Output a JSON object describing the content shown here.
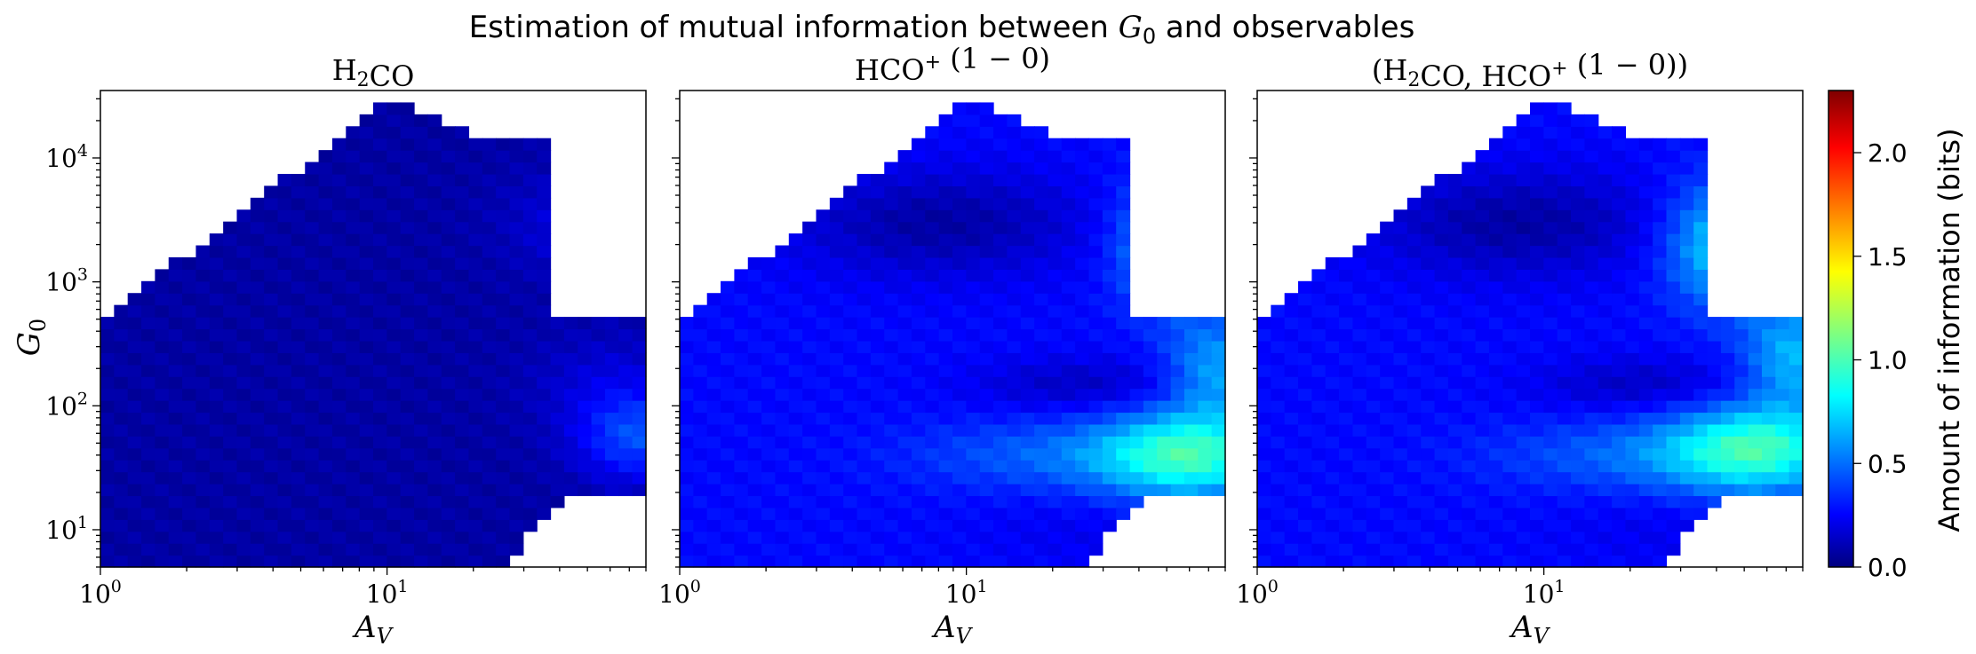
{
  "figure": {
    "suptitle_prefix": "Estimation of mutual information between ",
    "suptitle_symbol": "G",
    "suptitle_sub": "0",
    "suptitle_suffix": " and observables"
  },
  "colorbar": {
    "label": "Amount of information (bits)",
    "range": [
      0.0,
      2.3
    ],
    "ticks": [
      "0.0",
      "0.5",
      "1.0",
      "1.5",
      "2.0"
    ],
    "colormap": "jet",
    "colors": [
      "#00007f",
      "#0000ff",
      "#00ffff",
      "#ffff00",
      "#ff0000",
      "#7f0000"
    ]
  },
  "axes": {
    "xlabel_symbol": "A",
    "xlabel_sub": "V",
    "ylabel_symbol": "G",
    "ylabel_sub": "0",
    "x_ticks": [
      {
        "value": 1,
        "base": "10",
        "exp": "0"
      },
      {
        "value": 10,
        "base": "10",
        "exp": "1"
      }
    ],
    "y_ticks": [
      {
        "value": 10,
        "base": "10",
        "exp": "1"
      },
      {
        "value": 100,
        "base": "10",
        "exp": "2"
      },
      {
        "value": 1000,
        "base": "10",
        "exp": "3"
      },
      {
        "value": 10000,
        "base": "10",
        "exp": "4"
      }
    ]
  },
  "chart_data": [
    {
      "type": "heatmap",
      "title_parts": [
        {
          "t": "H"
        },
        {
          "t": "2",
          "sub": true
        },
        {
          "t": "CO"
        }
      ],
      "x_scale": "log",
      "y_scale": "log",
      "xlim": [
        1,
        80
      ],
      "ylim": [
        5,
        35000
      ],
      "grid": false,
      "description_of_values": "mutual information (bits) between G0 and observable, per (A_V, G0) bin",
      "base_value": 0.08,
      "blobs": [
        {
          "x": 75,
          "y": 55,
          "sx": 0.15,
          "sy": 0.25,
          "value": 0.35
        },
        {
          "x": 50,
          "y": 3000,
          "sx": 0.2,
          "sy": 0.3,
          "value": 0.15
        },
        {
          "x": 60,
          "y": 150,
          "sx": 0.2,
          "sy": 0.3,
          "value": 0.12
        }
      ]
    },
    {
      "type": "heatmap",
      "title_parts": [
        {
          "t": "HCO"
        },
        {
          "t": "+",
          "sup": true
        },
        {
          "t": " (1 − 0)"
        }
      ],
      "x_scale": "log",
      "y_scale": "log",
      "xlim": [
        1,
        80
      ],
      "ylim": [
        5,
        35000
      ],
      "grid": false,
      "description_of_values": "mutual information (bits) between G0 and observable, per (A_V, G0) bin",
      "base_value": 0.3,
      "blobs": [
        {
          "x": 60,
          "y": 40,
          "sx": 0.22,
          "sy": 0.25,
          "value": 0.65
        },
        {
          "x": 50,
          "y": 2000,
          "sx": 0.12,
          "sy": 0.35,
          "value": 0.45
        },
        {
          "x": 75,
          "y": 200,
          "sx": 0.12,
          "sy": 0.3,
          "value": 0.35
        },
        {
          "x": 20,
          "y": 40,
          "sx": 0.35,
          "sy": 0.2,
          "value": 0.2
        },
        {
          "x": 8,
          "y": 3000,
          "sx": 0.35,
          "sy": 0.3,
          "value": -0.22
        },
        {
          "x": 25,
          "y": 150,
          "sx": 0.25,
          "sy": 0.15,
          "value": -0.15
        },
        {
          "x": 30,
          "y": 10,
          "sx": 0.3,
          "sy": 0.2,
          "value": -0.05
        }
      ]
    },
    {
      "type": "heatmap",
      "title_parts": [
        {
          "t": "(H"
        },
        {
          "t": "2",
          "sub": true
        },
        {
          "t": "CO, HCO"
        },
        {
          "t": "+",
          "sup": true
        },
        {
          "t": " (1 − 0))"
        }
      ],
      "x_scale": "log",
      "y_scale": "log",
      "xlim": [
        1,
        80
      ],
      "ylim": [
        5,
        35000
      ],
      "grid": false,
      "description_of_values": "mutual information (bits) between G0 and observable, per (A_V, G0) bin",
      "base_value": 0.3,
      "blobs": [
        {
          "x": 55,
          "y": 45,
          "sx": 0.22,
          "sy": 0.25,
          "value": 0.65
        },
        {
          "x": 45,
          "y": 2000,
          "sx": 0.15,
          "sy": 0.35,
          "value": 0.55
        },
        {
          "x": 75,
          "y": 250,
          "sx": 0.12,
          "sy": 0.3,
          "value": 0.4
        },
        {
          "x": 20,
          "y": 40,
          "sx": 0.35,
          "sy": 0.2,
          "value": 0.2
        },
        {
          "x": 8,
          "y": 3000,
          "sx": 0.35,
          "sy": 0.3,
          "value": -0.22
        },
        {
          "x": 22,
          "y": 150,
          "sx": 0.25,
          "sy": 0.15,
          "value": -0.15
        },
        {
          "x": 30,
          "y": 10,
          "sx": 0.3,
          "sy": 0.2,
          "value": -0.05
        }
      ]
    }
  ]
}
